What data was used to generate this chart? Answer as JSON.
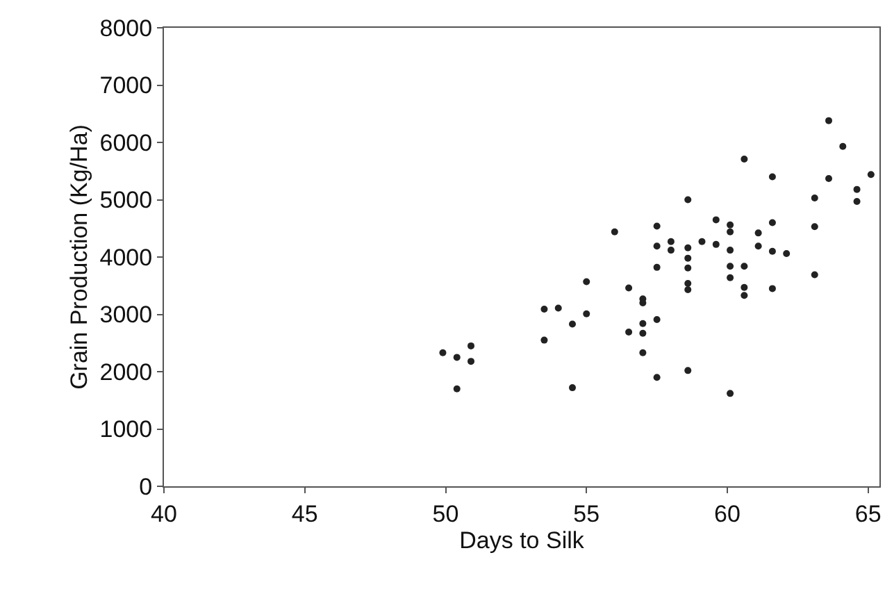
{
  "chart_data": {
    "type": "scatter",
    "xlabel": "Days to Silk",
    "ylabel": "Grain Production (Kg/Ha)",
    "xlim": [
      40,
      65.4
    ],
    "xticks": [
      40,
      45,
      50,
      55,
      60,
      65
    ],
    "ylim": [
      0,
      8000
    ],
    "yticks": [
      0,
      1000,
      2000,
      3000,
      4000,
      5000,
      6000,
      7000,
      8000
    ],
    "marker": "circle",
    "series": [
      {
        "color": "#222222",
        "x": [
          49.9,
          50.4,
          50.9,
          50.9,
          50.4,
          53.5,
          54.0,
          55.0,
          55.0,
          54.5,
          53.5,
          54.5,
          56.5,
          57.0,
          57.0,
          57.0,
          56.5,
          57.0,
          57.0,
          63.6,
          64.1,
          60.6,
          61.6,
          63.6,
          65.1,
          64.6,
          64.6,
          63.1,
          58.6,
          59.6,
          60.1,
          60.1,
          61.6,
          63.1,
          57.5,
          56.0,
          61.1,
          58.0,
          58.0,
          57.5,
          58.6,
          59.1,
          59.6,
          60.1,
          61.1,
          61.6,
          62.1,
          58.6,
          57.5,
          58.6,
          60.1,
          60.6,
          60.1,
          58.6,
          58.6,
          60.6,
          60.6,
          61.6,
          63.1,
          57.5,
          57.5,
          58.6,
          60.1
        ],
        "values": [
          2330,
          2250,
          2450,
          2180,
          1700,
          3090,
          3110,
          3570,
          3010,
          2830,
          2550,
          1720,
          3460,
          3270,
          3200,
          2840,
          2690,
          2670,
          2330,
          6380,
          5930,
          5710,
          5400,
          5370,
          5440,
          5180,
          4970,
          5030,
          5000,
          4650,
          4560,
          4440,
          4600,
          4530,
          4540,
          4440,
          4420,
          4270,
          4120,
          4190,
          4160,
          4270,
          4220,
          4120,
          4190,
          4100,
          4060,
          3980,
          3820,
          3810,
          3840,
          3840,
          3640,
          3540,
          3430,
          3470,
          3330,
          3450,
          3690,
          2910,
          1900,
          2020,
          1620
        ]
      }
    ]
  }
}
